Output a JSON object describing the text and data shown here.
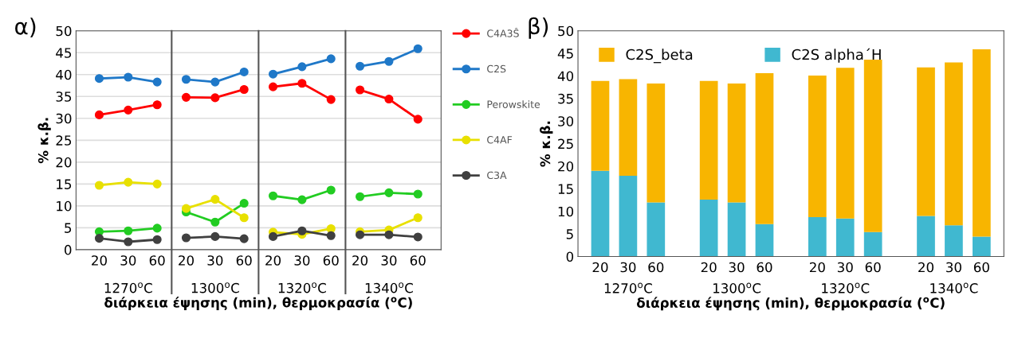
{
  "chart_data": [
    {
      "type": "line",
      "title": "α)",
      "xlabel": "διάρκεια έψησης (min), θερμοκρασία ($^{o}$C)",
      "ylabel": "% κ.β.",
      "categories": [
        "20",
        "30",
        "60",
        "20",
        "30",
        "60",
        "20",
        "30",
        "60",
        "20",
        "30",
        "60"
      ],
      "annotations": [
        "1270$^{o}$C",
        "1300$^{o}$C",
        "1320$^{o}$C",
        "1340$^{o}$C"
      ],
      "series": [
        {
          "name": "C4A3Ŝ",
          "color": "#ff0000",
          "values": [
            30.8,
            31.9,
            33.1,
            34.8,
            34.7,
            36.6,
            37.2,
            38.0,
            34.3,
            36.5,
            34.4,
            29.8
          ]
        },
        {
          "name": "C2S",
          "color": "#1f78c8",
          "values": [
            39.1,
            39.4,
            38.3,
            38.9,
            38.3,
            40.6,
            40.1,
            41.8,
            43.6,
            41.9,
            43.0,
            45.9
          ]
        },
        {
          "name": "Perowskite",
          "color": "#22cc22",
          "values": [
            4.1,
            4.3,
            4.9,
            8.6,
            6.3,
            10.6,
            12.3,
            11.4,
            13.6,
            12.1,
            13.0,
            12.7
          ]
        },
        {
          "name": "C4AF",
          "color": "#e8e000",
          "values": [
            14.7,
            15.4,
            15.0,
            9.4,
            11.5,
            7.3,
            4.0,
            3.5,
            4.8,
            4.1,
            4.5,
            7.3
          ]
        },
        {
          "name": "C3A",
          "color": "#404040",
          "values": [
            2.6,
            1.8,
            2.3,
            2.7,
            3.0,
            2.5,
            3.0,
            4.3,
            3.2,
            3.4,
            3.4,
            2.9
          ]
        }
      ],
      "ylim": [
        0,
        50
      ],
      "yticks": [
        0,
        5,
        10,
        15,
        20,
        25,
        30,
        35,
        40,
        45,
        50
      ],
      "grid": "y",
      "legend": "right",
      "marker": "circle",
      "line_style": "solid"
    },
    {
      "type": "bar",
      "stacked": true,
      "title": "β)",
      "xlabel": "διάρκεια έψησης (min), θερμοκρασία ($^{o}$C)",
      "ylabel": "% κ.β.",
      "categories": [
        "20",
        "30",
        "60",
        "20",
        "30",
        "60",
        "20",
        "30",
        "60",
        "20",
        "30",
        "60"
      ],
      "annotations": [
        "1270$^{o}$C",
        "1300$^{o}$C",
        "1320$^{o}$C",
        "1340$^{o}$C"
      ],
      "series": [
        {
          "name": "C2S alpha΄H",
          "color": "#40b8d0",
          "values": [
            19.0,
            17.9,
            12.0,
            12.6,
            12.0,
            7.2,
            8.7,
            8.4,
            5.4,
            9.0,
            6.9,
            4.4
          ]
        },
        {
          "name": "C2S_beta",
          "color": "#f8b500",
          "values": [
            19.9,
            21.4,
            26.3,
            26.3,
            26.3,
            33.4,
            31.4,
            33.4,
            38.2,
            32.9,
            36.1,
            41.5
          ]
        }
      ],
      "ylim": [
        0,
        50
      ],
      "yticks": [
        0,
        5,
        10,
        15,
        20,
        25,
        30,
        35,
        40,
        45,
        50
      ],
      "legend": "top left"
    }
  ]
}
